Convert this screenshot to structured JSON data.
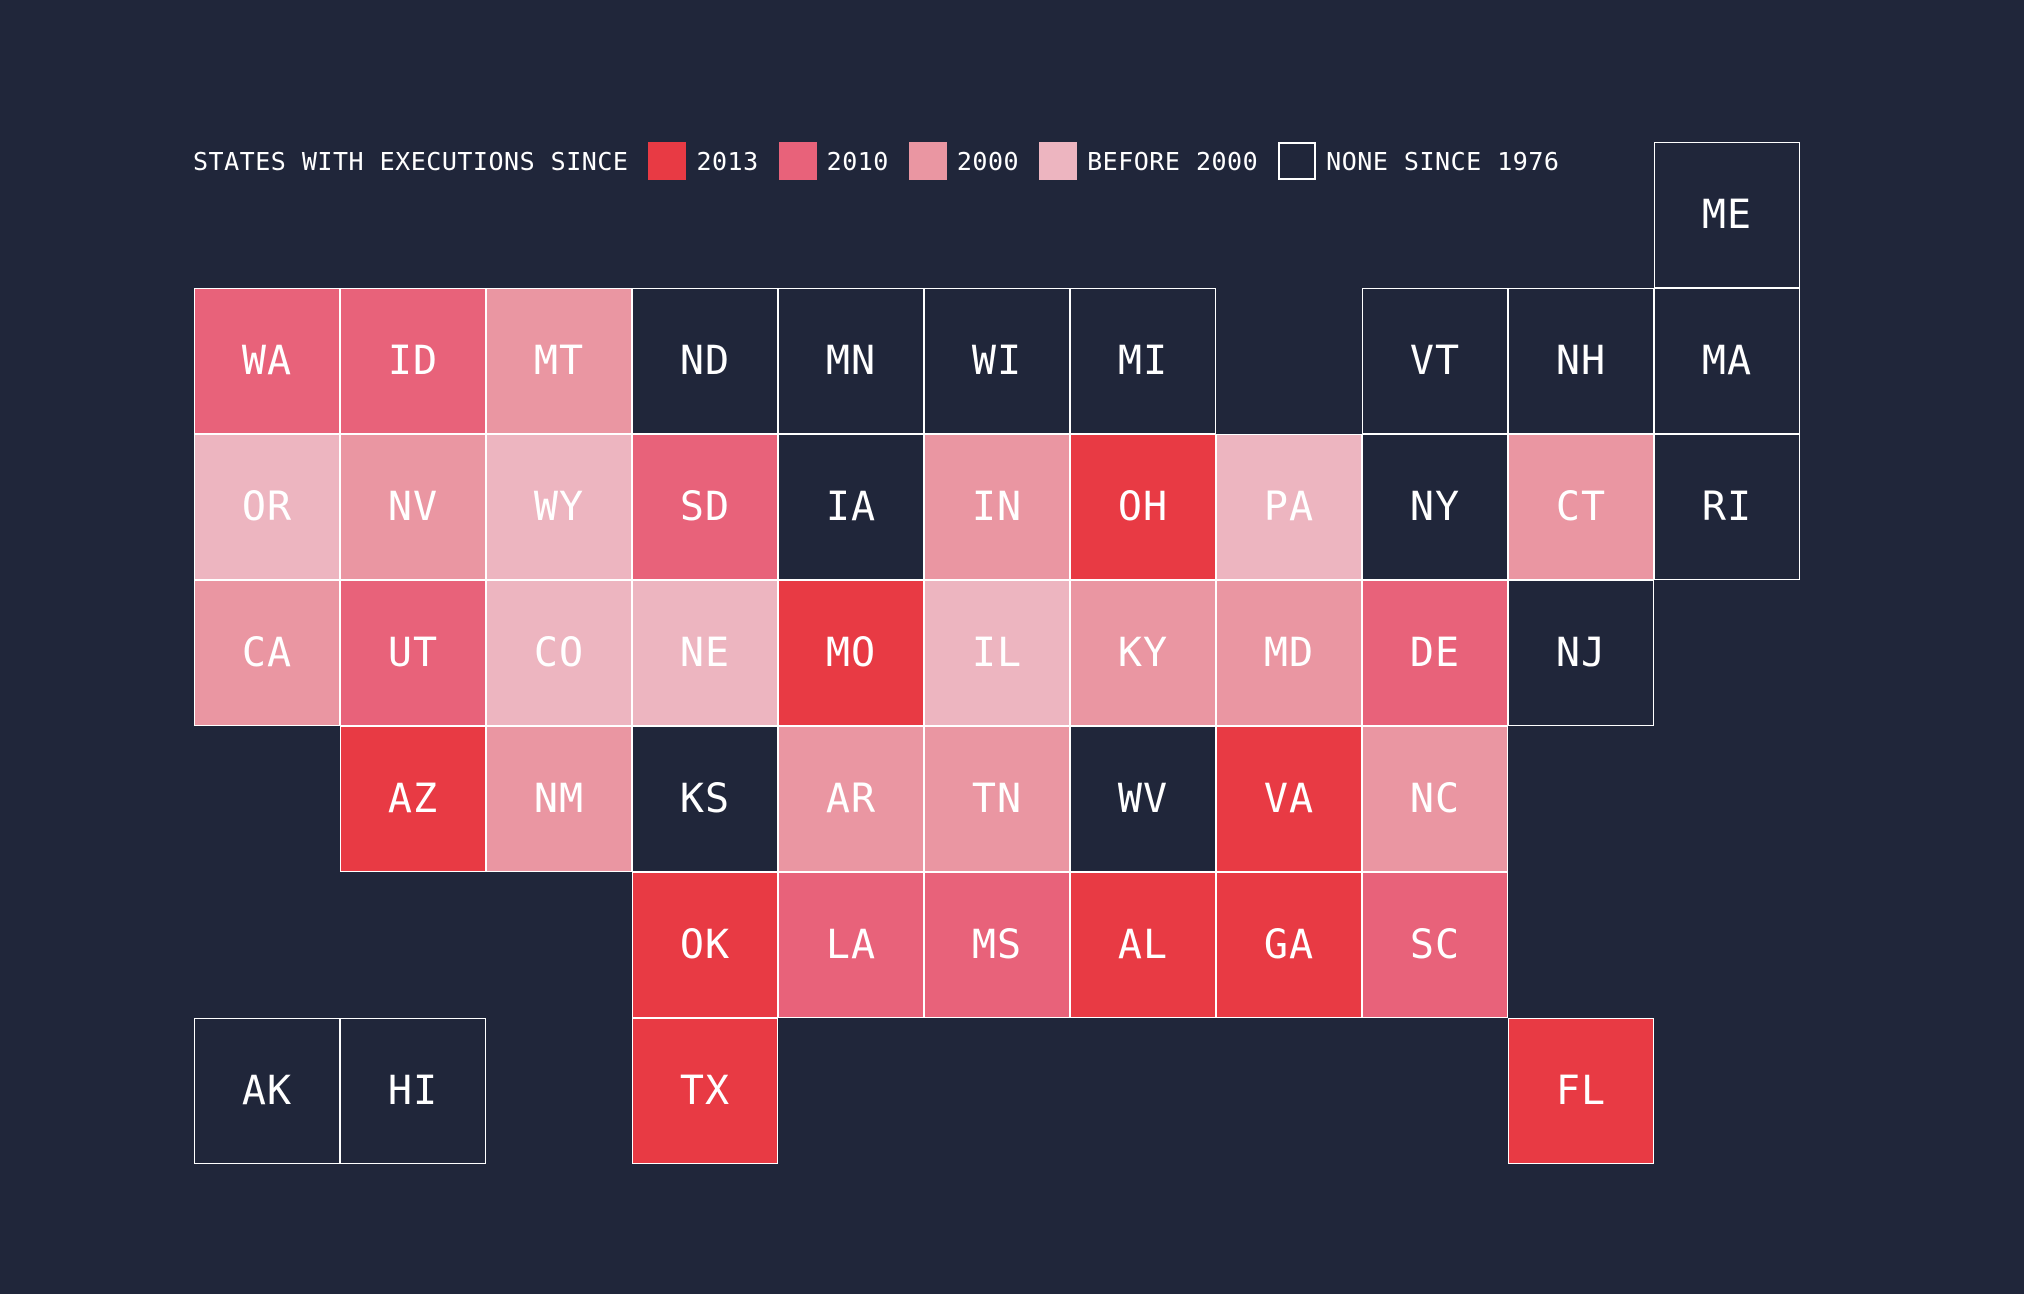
{
  "legend": {
    "title": "STATES WITH EXECUTIONS SINCE",
    "items": [
      {
        "key": "2013",
        "label": "2013",
        "color": "#e83a44"
      },
      {
        "key": "2010",
        "label": "2010",
        "color": "#e8627a"
      },
      {
        "key": "2000",
        "label": "2000",
        "color": "#ea96a2"
      },
      {
        "key": "before2000",
        "label": "BEFORE 2000",
        "color": "#edb5c0"
      },
      {
        "key": "none",
        "label": "NONE SINCE 1976",
        "color": "#20263a"
      }
    ]
  },
  "colors": {
    "background": "#20263a",
    "border": "#ffffff",
    "text": "#ffffff"
  },
  "states": [
    {
      "abbr": "ME",
      "row": 0,
      "col": 10,
      "category": "none"
    },
    {
      "abbr": "WA",
      "row": 1,
      "col": 0,
      "category": "2010"
    },
    {
      "abbr": "ID",
      "row": 1,
      "col": 1,
      "category": "2010"
    },
    {
      "abbr": "MT",
      "row": 1,
      "col": 2,
      "category": "2000"
    },
    {
      "abbr": "ND",
      "row": 1,
      "col": 3,
      "category": "none"
    },
    {
      "abbr": "MN",
      "row": 1,
      "col": 4,
      "category": "none"
    },
    {
      "abbr": "WI",
      "row": 1,
      "col": 5,
      "category": "none"
    },
    {
      "abbr": "MI",
      "row": 1,
      "col": 6,
      "category": "none"
    },
    {
      "abbr": "VT",
      "row": 1,
      "col": 8,
      "category": "none"
    },
    {
      "abbr": "NH",
      "row": 1,
      "col": 9,
      "category": "none"
    },
    {
      "abbr": "MA",
      "row": 1,
      "col": 10,
      "category": "none"
    },
    {
      "abbr": "OR",
      "row": 2,
      "col": 0,
      "category": "before2000"
    },
    {
      "abbr": "NV",
      "row": 2,
      "col": 1,
      "category": "2000"
    },
    {
      "abbr": "WY",
      "row": 2,
      "col": 2,
      "category": "before2000"
    },
    {
      "abbr": "SD",
      "row": 2,
      "col": 3,
      "category": "2010"
    },
    {
      "abbr": "IA",
      "row": 2,
      "col": 4,
      "category": "none"
    },
    {
      "abbr": "IN",
      "row": 2,
      "col": 5,
      "category": "2000"
    },
    {
      "abbr": "OH",
      "row": 2,
      "col": 6,
      "category": "2013"
    },
    {
      "abbr": "PA",
      "row": 2,
      "col": 7,
      "category": "before2000"
    },
    {
      "abbr": "NY",
      "row": 2,
      "col": 8,
      "category": "none"
    },
    {
      "abbr": "CT",
      "row": 2,
      "col": 9,
      "category": "2000"
    },
    {
      "abbr": "RI",
      "row": 2,
      "col": 10,
      "category": "none"
    },
    {
      "abbr": "CA",
      "row": 3,
      "col": 0,
      "category": "2000"
    },
    {
      "abbr": "UT",
      "row": 3,
      "col": 1,
      "category": "2010"
    },
    {
      "abbr": "CO",
      "row": 3,
      "col": 2,
      "category": "before2000"
    },
    {
      "abbr": "NE",
      "row": 3,
      "col": 3,
      "category": "before2000"
    },
    {
      "abbr": "MO",
      "row": 3,
      "col": 4,
      "category": "2013"
    },
    {
      "abbr": "IL",
      "row": 3,
      "col": 5,
      "category": "before2000"
    },
    {
      "abbr": "KY",
      "row": 3,
      "col": 6,
      "category": "2000"
    },
    {
      "abbr": "MD",
      "row": 3,
      "col": 7,
      "category": "2000"
    },
    {
      "abbr": "DE",
      "row": 3,
      "col": 8,
      "category": "2010"
    },
    {
      "abbr": "NJ",
      "row": 3,
      "col": 9,
      "category": "none"
    },
    {
      "abbr": "AZ",
      "row": 4,
      "col": 1,
      "category": "2013"
    },
    {
      "abbr": "NM",
      "row": 4,
      "col": 2,
      "category": "2000"
    },
    {
      "abbr": "KS",
      "row": 4,
      "col": 3,
      "category": "none"
    },
    {
      "abbr": "AR",
      "row": 4,
      "col": 4,
      "category": "2000"
    },
    {
      "abbr": "TN",
      "row": 4,
      "col": 5,
      "category": "2000"
    },
    {
      "abbr": "WV",
      "row": 4,
      "col": 6,
      "category": "none"
    },
    {
      "abbr": "VA",
      "row": 4,
      "col": 7,
      "category": "2013"
    },
    {
      "abbr": "NC",
      "row": 4,
      "col": 8,
      "category": "2000"
    },
    {
      "abbr": "OK",
      "row": 5,
      "col": 3,
      "category": "2013"
    },
    {
      "abbr": "LA",
      "row": 5,
      "col": 4,
      "category": "2010"
    },
    {
      "abbr": "MS",
      "row": 5,
      "col": 5,
      "category": "2010"
    },
    {
      "abbr": "AL",
      "row": 5,
      "col": 6,
      "category": "2013"
    },
    {
      "abbr": "GA",
      "row": 5,
      "col": 7,
      "category": "2013"
    },
    {
      "abbr": "SC",
      "row": 5,
      "col": 8,
      "category": "2010"
    },
    {
      "abbr": "AK",
      "row": 6,
      "col": 0,
      "category": "none"
    },
    {
      "abbr": "HI",
      "row": 6,
      "col": 1,
      "category": "none"
    },
    {
      "abbr": "TX",
      "row": 6,
      "col": 3,
      "category": "2013"
    },
    {
      "abbr": "FL",
      "row": 6,
      "col": 9,
      "category": "2013"
    }
  ]
}
